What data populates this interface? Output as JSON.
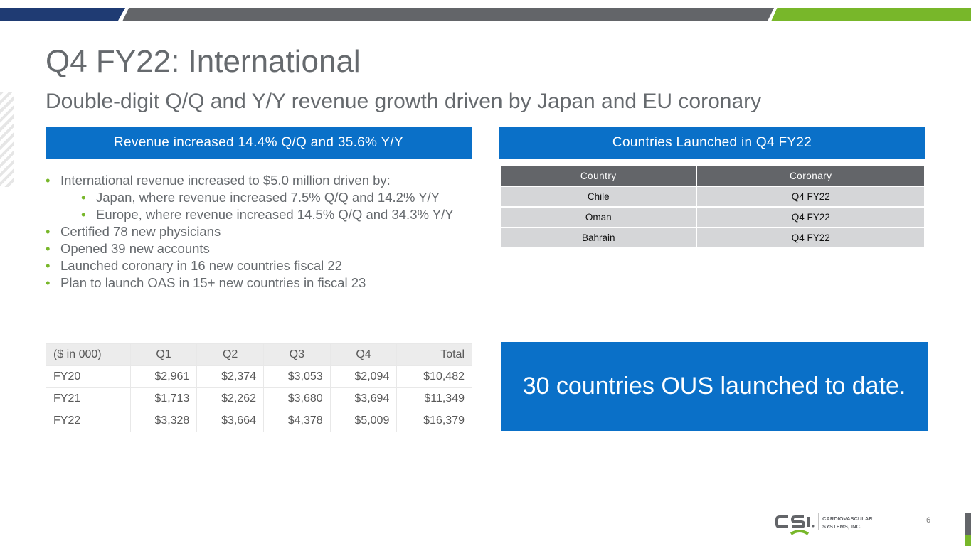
{
  "slide": {
    "title": "Q4 FY22: International",
    "subtitle": "Double-digit Q/Q and Y/Y revenue growth driven by Japan and EU coronary",
    "left_banner": "Revenue increased 14.4% Q/Q and 35.6% Y/Y",
    "right_banner": "Countries Launched in Q4 FY22",
    "bullets": [
      "International revenue increased to $5.0 million driven by:",
      "Japan, where revenue increased 7.5% Q/Q and 14.2% Y/Y",
      "Europe, where revenue increased 14.5% Q/Q and 34.3% Y/Y",
      "Certified 78 new physicians",
      "Opened 39 new accounts",
      "Launched coronary in 16 new countries fiscal 22",
      "Plan to launch OAS in 15+ new countries in fiscal 23"
    ],
    "callout": "30 countries OUS launched to date.",
    "page_number": "6"
  },
  "launch_table": {
    "headers": [
      "Country",
      "Coronary"
    ],
    "rows": [
      [
        "Chile",
        "Q4 FY22"
      ],
      [
        "Oman",
        "Q4 FY22"
      ],
      [
        "Bahrain",
        "Q4 FY22"
      ]
    ]
  },
  "revenue_table": {
    "headers": [
      "($ in 000)",
      "Q1",
      "Q2",
      "Q3",
      "Q4",
      "Total"
    ],
    "rows": [
      [
        "FY20",
        "$2,961",
        "$2,374",
        "$3,053",
        "$2,094",
        "$10,482"
      ],
      [
        "FY21",
        "$1,713",
        "$2,262",
        "$3,680",
        "$3,694",
        "$11,349"
      ],
      [
        "FY22",
        "$3,328",
        "$3,664",
        "$4,378",
        "$5,009",
        "$16,379"
      ]
    ]
  },
  "logo": {
    "mark": "CSI",
    "line1": "CARDIOVASCULAR",
    "line2": "SYSTEMS, INC."
  },
  "colors": {
    "brand_blue": "#0a70c8",
    "navy": "#1f3b73",
    "gray": "#636569",
    "green": "#78b72a"
  }
}
